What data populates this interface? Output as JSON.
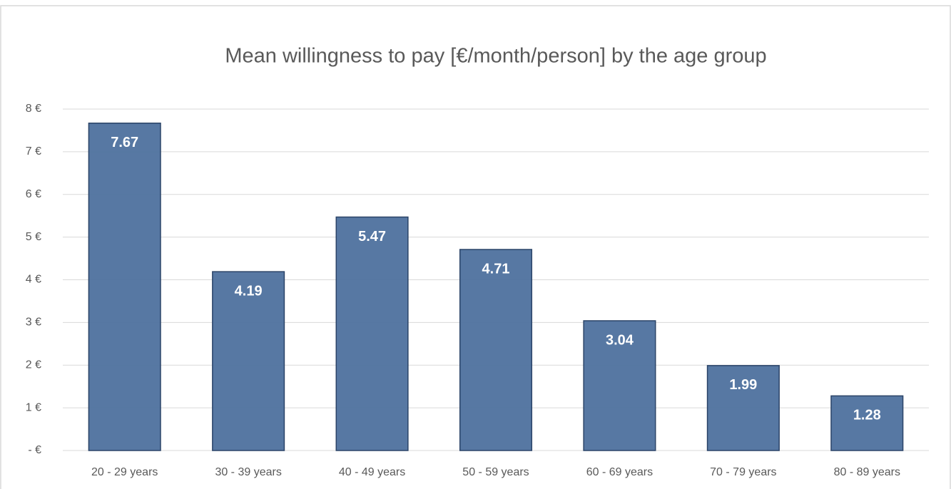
{
  "chart_data": {
    "type": "bar",
    "title": "Mean willingness to pay [€/month/person] by the age group",
    "categories": [
      "20 - 29 years",
      "30 - 39 years",
      "40 - 49 years",
      "50 - 59 years",
      "60 - 69 years",
      "70 - 79 years",
      "80 - 89 years"
    ],
    "values": [
      7.67,
      4.19,
      5.47,
      4.71,
      3.04,
      1.99,
      1.28
    ],
    "color": "#5274a0",
    "ylim": [
      0,
      8
    ],
    "yticks": [
      {
        "value": 0,
        "label": "- €"
      },
      {
        "value": 1,
        "label": "1 €"
      },
      {
        "value": 2,
        "label": "2 €"
      },
      {
        "value": 3,
        "label": "3 €"
      },
      {
        "value": 4,
        "label": "4 €"
      },
      {
        "value": 5,
        "label": "5 €"
      },
      {
        "value": 6,
        "label": "6 €"
      },
      {
        "value": 7,
        "label": "7 €"
      },
      {
        "value": 8,
        "label": "8 €"
      }
    ],
    "grid": true
  }
}
